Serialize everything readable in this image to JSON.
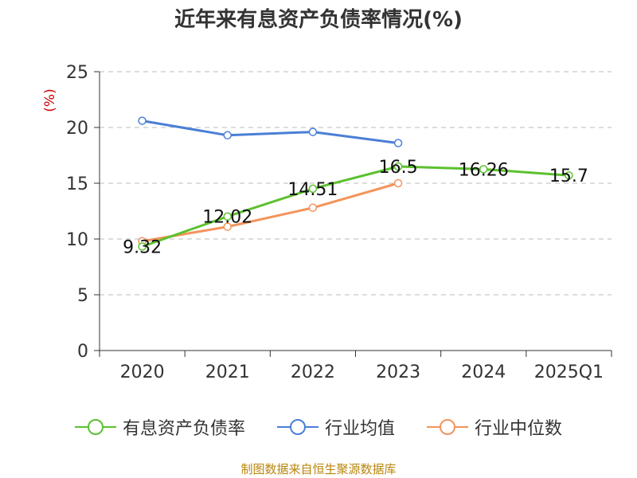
{
  "chart_data": {
    "type": "line",
    "title": "近年来有息资产负债率情况(%)",
    "ylabel": "(%)",
    "categories": [
      "2020",
      "2021",
      "2022",
      "2023",
      "2024",
      "2025Q1"
    ],
    "ylim": [
      0,
      25
    ],
    "yticks": [
      0,
      5,
      10,
      15,
      20,
      25
    ],
    "grid": true,
    "legend_position": "bottom",
    "series": [
      {
        "name": "有息资产负债率",
        "color": "#5cc12f",
        "values": [
          9.32,
          12.02,
          14.51,
          16.5,
          16.26,
          15.7
        ],
        "labels": [
          "9.32",
          "12.02",
          "14.51",
          "16.5",
          "16.26",
          "15.7"
        ]
      },
      {
        "name": "行业均值",
        "color": "#4a7fd6",
        "values": [
          20.6,
          19.3,
          19.6,
          18.6,
          null,
          null
        ]
      },
      {
        "name": "行业中位数",
        "color": "#f4935a",
        "values": [
          9.8,
          11.1,
          12.8,
          15.0,
          null,
          null
        ]
      }
    ]
  },
  "source": "制图数据来自恒生聚源数据库"
}
